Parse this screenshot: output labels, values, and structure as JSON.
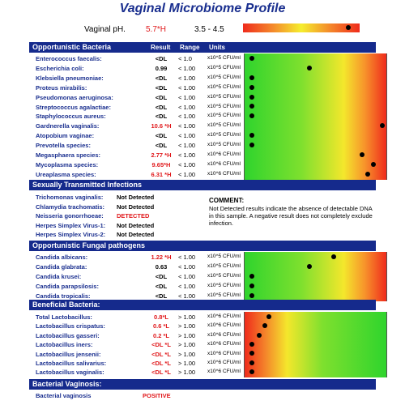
{
  "title": "Vaginal Microbiome Profile",
  "ph": {
    "label": "Vaginal pH.",
    "value": "5.7*H",
    "range": "3.5 - 4.5",
    "marker_fraction": 0.9
  },
  "columns": {
    "result": "Result",
    "range": "Range",
    "units": "Units"
  },
  "opportunistic": {
    "header": "Opportunistic Bacteria",
    "rows": [
      {
        "name": "Enterococcus faecalis:",
        "result": "<DL",
        "flag": false,
        "range": "< 1.0",
        "unit": "x10^5 CFU/ml",
        "level": 0.05
      },
      {
        "name": "Escherichia coli:",
        "result": "0.99",
        "flag": false,
        "range": "< 1.00",
        "unit": "x10^5 CFU/ml",
        "level": 0.45
      },
      {
        "name": "Klebsiella pneumoniae:",
        "result": "<DL",
        "flag": false,
        "range": "< 1.00",
        "unit": "x10^5 CFU/ml",
        "level": 0.05
      },
      {
        "name": "Proteus mirabilis:",
        "result": "<DL",
        "flag": false,
        "range": "< 1.00",
        "unit": "x10^5 CFU/ml",
        "level": 0.05
      },
      {
        "name": "Pseudomonas aeruginosa:",
        "result": "<DL",
        "flag": false,
        "range": "< 1.00",
        "unit": "x10^5 CFU/ml",
        "level": 0.05
      },
      {
        "name": "Streptococcus agalactiae:",
        "result": "<DL",
        "flag": false,
        "range": "< 1.00",
        "unit": "x10^5 CFU/ml",
        "level": 0.05
      },
      {
        "name": "Staphylococcus aureus:",
        "result": "<DL",
        "flag": false,
        "range": "< 1.00",
        "unit": "x10^5 CFU/ml",
        "level": 0.05
      },
      {
        "name": "Gardnerella vaginalis:",
        "result": "10.6 *H",
        "flag": true,
        "range": "< 1.00",
        "unit": "x10^5 CFU/ml",
        "level": 0.96
      },
      {
        "name": "Atopobium vaginae:",
        "result": "<DL",
        "flag": false,
        "range": "< 1.00",
        "unit": "x10^5 CFU/ml",
        "level": 0.05
      },
      {
        "name": "Prevotella species:",
        "result": "<DL",
        "flag": false,
        "range": "< 1.00",
        "unit": "x10^5 CFU/ml",
        "level": 0.05
      },
      {
        "name": "Megasphaera species:",
        "result": "2.77 *H",
        "flag": true,
        "range": "< 1.00",
        "unit": "x10^6 CFU/ml",
        "level": 0.82
      },
      {
        "name": "Mycoplasma species:",
        "result": "9.65*H",
        "flag": true,
        "range": "< 1.00",
        "unit": "x10^6 CFU/ml",
        "level": 0.9
      },
      {
        "name": "Ureaplasma species:",
        "result": "6.31 *H",
        "flag": true,
        "range": "< 1.00",
        "unit": "x10^6 CFU/ml",
        "level": 0.86
      }
    ]
  },
  "sti": {
    "header": "Sexually Transmitted Infections",
    "rows": [
      {
        "name": "Trichomonas vaginalis:",
        "result": "Not Detected",
        "positive": false
      },
      {
        "name": "Chlamydia trachomatis:",
        "result": "Not Detected",
        "positive": false
      },
      {
        "name": "Neisseria gonorrhoeae:",
        "result": "DETECTED",
        "positive": true
      },
      {
        "name": "Herpes Simplex Virus-1:",
        "result": "Not Detected",
        "positive": false
      },
      {
        "name": "Herpes Simplex Virus-2:",
        "result": "Not Detected",
        "positive": false
      }
    ],
    "comment_title": "COMMENT:",
    "comment_text": "Not Detected results indicate the absence of detectable DNA in this sample. A negative result does not completely exclude infection."
  },
  "fungal": {
    "header": "Opportunistic Fungal pathogens",
    "rows": [
      {
        "name": "Candida albicans:",
        "result": "1.22 *H",
        "flag": true,
        "range": "< 1.00",
        "unit": "x10^5 CFU/ml",
        "level": 0.62
      },
      {
        "name": "Candida glabrata:",
        "result": "0.63",
        "flag": false,
        "range": "< 1.00",
        "unit": "x10^5 CFU/ml",
        "level": 0.45
      },
      {
        "name": "Candida krusei:",
        "result": "<DL",
        "flag": false,
        "range": "< 1.00",
        "unit": "x10^5 CFU/ml",
        "level": 0.05
      },
      {
        "name": "Candida parapsilosis:",
        "result": "<DL",
        "flag": false,
        "range": "< 1.00",
        "unit": "x10^5 CFU/ml",
        "level": 0.05
      },
      {
        "name": "Candida tropicalis:",
        "result": "<DL",
        "flag": false,
        "range": "< 1.00",
        "unit": "x10^5 CFU/ml",
        "level": 0.05
      }
    ]
  },
  "beneficial": {
    "header": "Beneficial Bacteria:",
    "rows": [
      {
        "name": "Total Lactobacillus:",
        "result": "0.8*L",
        "flag": true,
        "range": "> 1.00",
        "unit": "x10^6 CFU/ml",
        "level": 0.17
      },
      {
        "name": "Lactobacillus crispatus:",
        "result": "0.6 *L",
        "flag": true,
        "range": "> 1.00",
        "unit": "x10^6 CFU/ml",
        "level": 0.14
      },
      {
        "name": "Lactobacillus gasseri:",
        "result": "0.2 *L",
        "flag": true,
        "range": "> 1.00",
        "unit": "x10^6 CFU/ml",
        "level": 0.1
      },
      {
        "name": "Lactobacillus iners:",
        "result": "<DL *L",
        "flag": true,
        "range": "> 1.00",
        "unit": "x10^6 CFU/ml",
        "level": 0.05
      },
      {
        "name": "Lactobacillus jensenii:",
        "result": "<DL *L",
        "flag": true,
        "range": "> 1.00",
        "unit": "x10^6 CFU/ml",
        "level": 0.05
      },
      {
        "name": "Lactobacillus salivarius:",
        "result": "<DL *L",
        "flag": true,
        "range": "> 1.00",
        "unit": "x10^6 CFU/ml",
        "level": 0.05
      },
      {
        "name": "Lactobacillus vaginalis:",
        "result": "<DL *L",
        "flag": true,
        "range": "> 1.00",
        "unit": "x10^6 CFU/ml",
        "level": 0.05
      }
    ]
  },
  "bv": {
    "header": "Bacterial Vaginosis:",
    "name": "Bacterial vaginosis",
    "result": "POSITIVE"
  }
}
